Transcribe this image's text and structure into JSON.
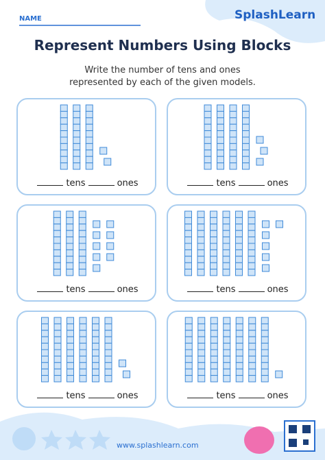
{
  "header": {
    "name_label": "NAME",
    "brand": "SplashLearn"
  },
  "title": "Represent Numbers Using Blocks",
  "instructions": [
    "Write the number of tens and ones",
    "represented by each of the given models."
  ],
  "models": [
    {
      "tens": 3,
      "ones": 2,
      "tens_label": "tens",
      "ones_label": "ones"
    },
    {
      "tens": 4,
      "ones": 3,
      "tens_label": "tens",
      "ones_label": "ones"
    },
    {
      "tens": 3,
      "ones": 9,
      "tens_label": "tens",
      "ones_label": "ones"
    },
    {
      "tens": 6,
      "ones": 6,
      "tens_label": "tens",
      "ones_label": "ones"
    },
    {
      "tens": 6,
      "ones": 2,
      "tens_label": "tens",
      "ones_label": "ones"
    },
    {
      "tens": 7,
      "ones": 1,
      "tens_label": "tens",
      "ones_label": "ones"
    }
  ],
  "footer": {
    "url": "www.splashlearn.com"
  }
}
